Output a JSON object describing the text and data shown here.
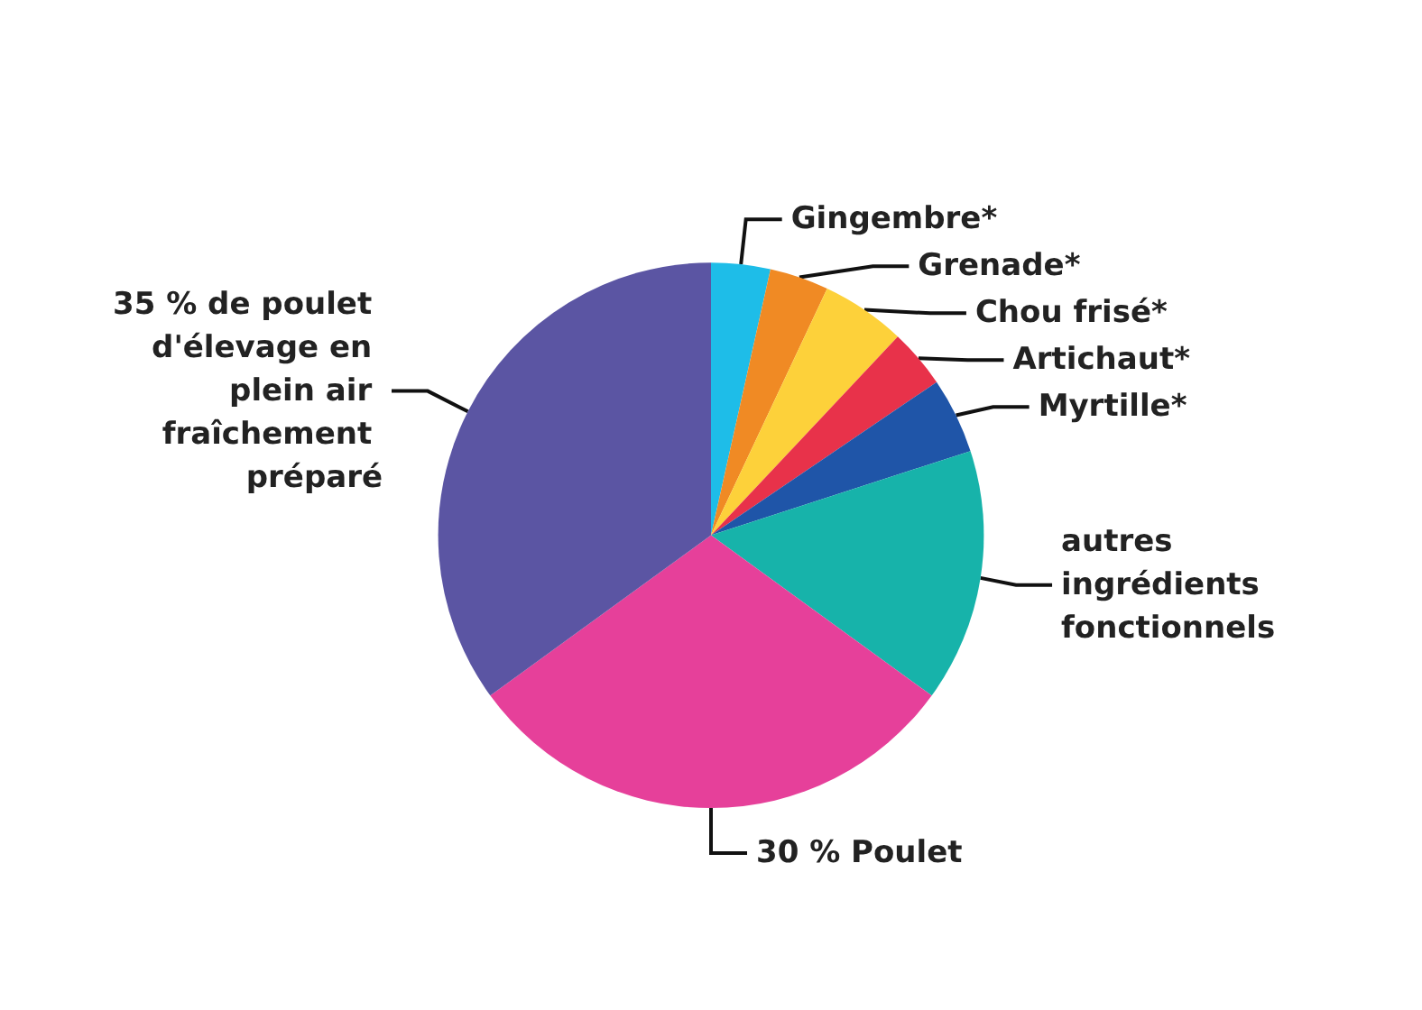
{
  "chart_data": {
    "type": "pie",
    "categories": [
      "Gingembre*",
      "Grenade*",
      "Chou frisé*",
      "Artichaut*",
      "Myrtille*",
      "autres ingrédients fonctionnels",
      "30 % Poulet",
      "35 % de poulet d'élevage en plein air fraîchement préparé"
    ],
    "values": [
      3.5,
      3.5,
      5,
      3.5,
      4.5,
      15,
      30,
      35
    ],
    "colors": [
      "#1ebde8",
      "#f08a24",
      "#fdd13a",
      "#e8324a",
      "#1f55a8",
      "#17b3aa",
      "#e6409a",
      "#5b55a3"
    ],
    "legend": false
  }
}
